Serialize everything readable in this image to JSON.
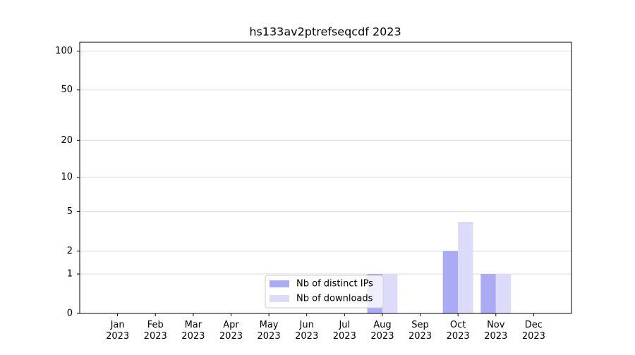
{
  "chart_data": {
    "type": "bar",
    "title": "hs133av2ptrefseqcdf 2023",
    "categories": [
      "Jan\n2023",
      "Feb\n2023",
      "Mar\n2023",
      "Apr\n2023",
      "May\n2023",
      "Jun\n2023",
      "Jul\n2023",
      "Aug\n2023",
      "Sep\n2023",
      "Oct\n2023",
      "Nov\n2023",
      "Dec\n2023"
    ],
    "series": [
      {
        "name": "Nb of distinct IPs",
        "color": "#aaaaf5",
        "values": [
          0,
          0,
          0,
          0,
          0,
          0,
          0,
          1,
          0,
          2,
          1,
          0
        ]
      },
      {
        "name": "Nb of downloads",
        "color": "#dcdcfa",
        "values": [
          0,
          0,
          0,
          0,
          0,
          0,
          0,
          1,
          0,
          4,
          1,
          0
        ]
      }
    ],
    "yscale": "log1p",
    "ylim": [
      0,
      117
    ],
    "yticks": [
      0,
      1,
      2,
      5,
      10,
      20,
      50,
      100
    ],
    "grid": true,
    "legend": "lower center"
  }
}
